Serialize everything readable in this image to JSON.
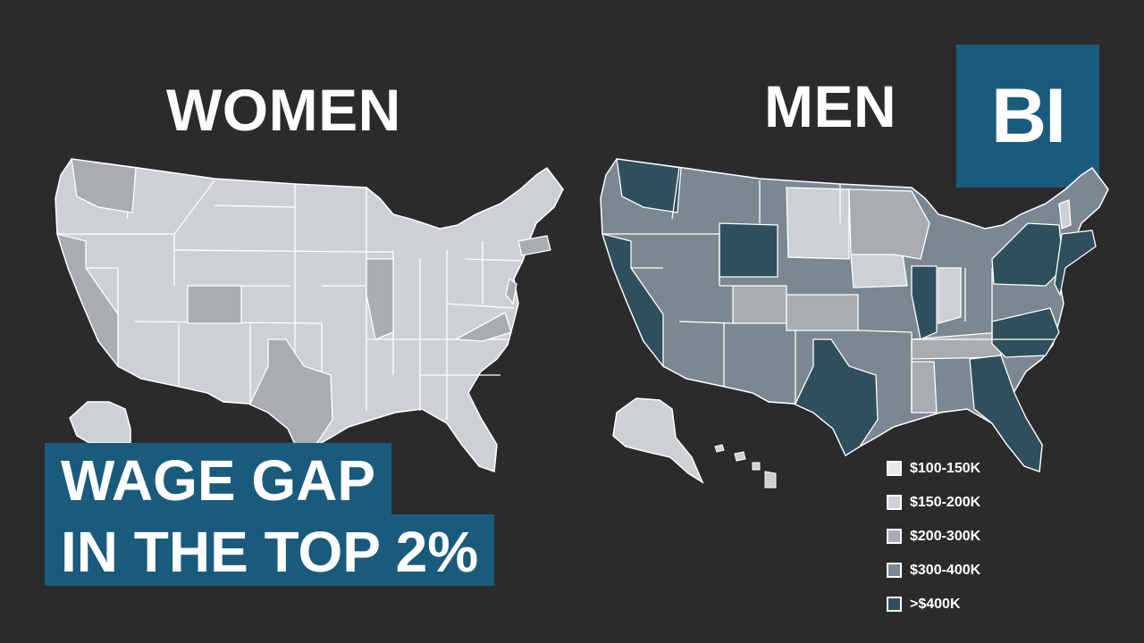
{
  "maps": [
    {
      "title": "WOMEN"
    },
    {
      "title": "MEN"
    }
  ],
  "logo": "BI",
  "headline": [
    "WAGE GAP",
    "IN THE TOP 2%"
  ],
  "legend": [
    {
      "label": "$100-150K",
      "color": "#e8eaeb"
    },
    {
      "label": "$150-200K",
      "color": "#cdd1d4"
    },
    {
      "label": "$200-300K",
      "color": "#a9adb1"
    },
    {
      "label": "$300-400K",
      "color": "#7b8891"
    },
    {
      "label": ">$400K",
      "color": "#2f4f5c"
    }
  ],
  "colors": {
    "background": "#2b2b2e",
    "brand": "#1a5b7c",
    "state_border": "#ffffff"
  },
  "regions": {
    "women": {
      "default_bin": "$150-200K",
      "$200-300K": [
        "WA",
        "CA",
        "CO",
        "TX",
        "IL",
        "VA",
        "NJ",
        "CT",
        "MA"
      ]
    },
    "men": {
      ">$400K": [
        "WA",
        "CA",
        "WY",
        "TX",
        "IL",
        "GA",
        "FL",
        "NC",
        "VA",
        "PA",
        "NY",
        "NJ",
        "CT",
        "MA"
      ],
      "$300-400K": [
        "OR",
        "NV",
        "ID",
        "MT",
        "UT",
        "AZ",
        "NM",
        "NE",
        "MO",
        "AR",
        "OK",
        "LA",
        "AL",
        "MI",
        "OH",
        "ME",
        "NH"
      ],
      "$200-300K": [
        "CO",
        "KS",
        "MN",
        "WI",
        "TN",
        "KY",
        "IN",
        "SC",
        "MS",
        "WV",
        "MD"
      ],
      "$150-200K": [
        "ND",
        "SD",
        "IA",
        "VT",
        "AK",
        "HI"
      ]
    }
  }
}
